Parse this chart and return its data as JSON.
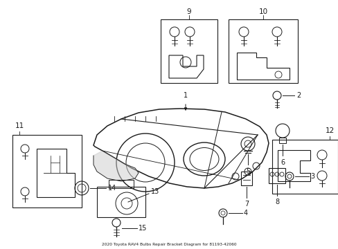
{
  "title": "2020 Toyota RAV4 Bulbs Repair Bracket Diagram for 81193-42060",
  "bg_color": "#ffffff",
  "line_color": "#1a1a1a",
  "text_color": "#1a1a1a",
  "fig_w": 4.89,
  "fig_h": 3.6,
  "dpi": 100
}
